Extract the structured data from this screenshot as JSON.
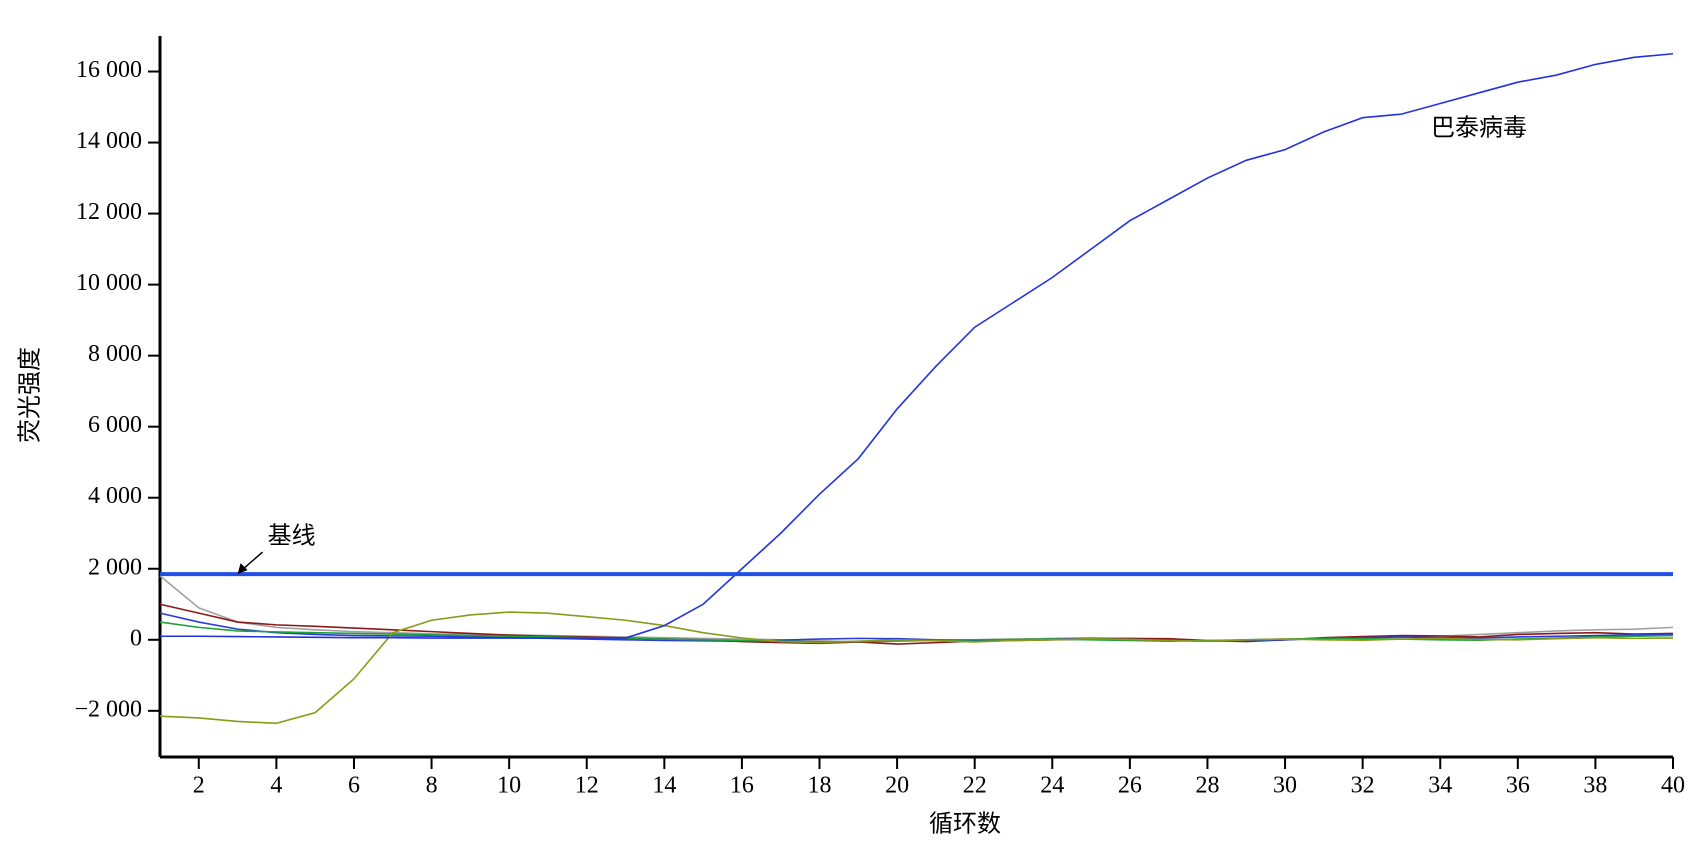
{
  "chart_data": {
    "type": "line",
    "xlabel": "循环数",
    "ylabel": "荧光强度",
    "x": [
      1,
      2,
      3,
      4,
      5,
      6,
      7,
      8,
      9,
      10,
      11,
      12,
      13,
      14,
      15,
      16,
      17,
      18,
      19,
      20,
      21,
      22,
      23,
      24,
      25,
      26,
      27,
      28,
      29,
      30,
      31,
      32,
      33,
      34,
      35,
      36,
      37,
      38,
      39,
      40
    ],
    "xlim": [
      1,
      40
    ],
    "xticks": [
      2,
      4,
      6,
      8,
      10,
      12,
      14,
      16,
      18,
      20,
      22,
      24,
      26,
      28,
      30,
      32,
      34,
      36,
      38,
      40
    ],
    "ylim": [
      -3300,
      17000
    ],
    "yticks": [
      {
        "value": -2000,
        "label": "−2 000"
      },
      0,
      {
        "value": 2000,
        "label": "2 000"
      },
      {
        "value": 4000,
        "label": "4 000"
      },
      {
        "value": 6000,
        "label": "6 000"
      },
      {
        "value": 8000,
        "label": "8 000"
      },
      {
        "value": 10000,
        "label": "10 000"
      },
      {
        "value": 12000,
        "label": "12 000"
      },
      {
        "value": 14000,
        "label": "14 000"
      },
      {
        "value": 16000,
        "label": "16 000"
      }
    ],
    "series": [
      {
        "color": "#a0a0a0",
        "values": [
          1800,
          900,
          500,
          350,
          280,
          230,
          200,
          170,
          150,
          140,
          120,
          100,
          80,
          60,
          40,
          20,
          0,
          -30,
          -60,
          -40,
          -20,
          0,
          20,
          40,
          60,
          40,
          0,
          -30,
          -20,
          0,
          30,
          60,
          80,
          100,
          150,
          200,
          250,
          280,
          300,
          350
        ]
      },
      {
        "color": "#8b1a1a",
        "values": [
          1000,
          750,
          500,
          420,
          380,
          330,
          280,
          230,
          180,
          130,
          100,
          80,
          50,
          20,
          0,
          -50,
          -80,
          -100,
          -60,
          -120,
          -80,
          -40,
          -20,
          0,
          20,
          40,
          30,
          -20,
          -50,
          0,
          60,
          90,
          120,
          110,
          80,
          150,
          180,
          200,
          160,
          180
        ]
      },
      {
        "color": "#2a3bd8",
        "values": [
          750,
          500,
          300,
          200,
          150,
          120,
          110,
          100,
          80,
          60,
          40,
          20,
          0,
          -20,
          -30,
          -40,
          -10,
          20,
          40,
          30,
          0,
          -10,
          0,
          20,
          30,
          10,
          -20,
          -40,
          -30,
          0,
          40,
          60,
          80,
          60,
          50,
          80,
          100,
          120,
          140,
          150
        ]
      },
      {
        "color": "#1fa03a",
        "values": [
          500,
          350,
          250,
          220,
          200,
          180,
          160,
          140,
          120,
          100,
          80,
          60,
          40,
          20,
          0,
          -20,
          -40,
          -60,
          -50,
          -30,
          -10,
          0,
          10,
          20,
          0,
          -20,
          -40,
          -20,
          0,
          20,
          40,
          30,
          20,
          0,
          -10,
          20,
          50,
          80,
          100,
          120
        ]
      },
      {
        "color": "#8a9a1a",
        "values": [
          -2150,
          -2200,
          -2300,
          -2350,
          -2050,
          -1100,
          200,
          550,
          700,
          780,
          750,
          650,
          550,
          400,
          200,
          50,
          -50,
          -80,
          -40,
          0,
          -30,
          -60,
          -20,
          0,
          30,
          10,
          -20,
          -40,
          0,
          20,
          0,
          -10,
          20,
          40,
          10,
          0,
          30,
          60,
          40,
          50
        ]
      },
      {
        "color": "#2233dd",
        "values": [
          100,
          100,
          90,
          80,
          70,
          60,
          60,
          50,
          50,
          50,
          50,
          50,
          50,
          400,
          1000,
          2000,
          3000,
          4100,
          5100,
          6500,
          7700,
          8800,
          9500,
          10200,
          11000,
          11800,
          12400,
          13000,
          13500,
          13800,
          14300,
          14700,
          14800,
          15100,
          15400,
          15700,
          15900,
          16200,
          16400,
          16500
        ]
      }
    ],
    "annotations": [
      {
        "text": "巴泰病毒",
        "x": 35,
        "y": 14350
      },
      {
        "text": "基线",
        "x": 3,
        "y": 1850,
        "color": "#1f4fe6"
      }
    ]
  }
}
